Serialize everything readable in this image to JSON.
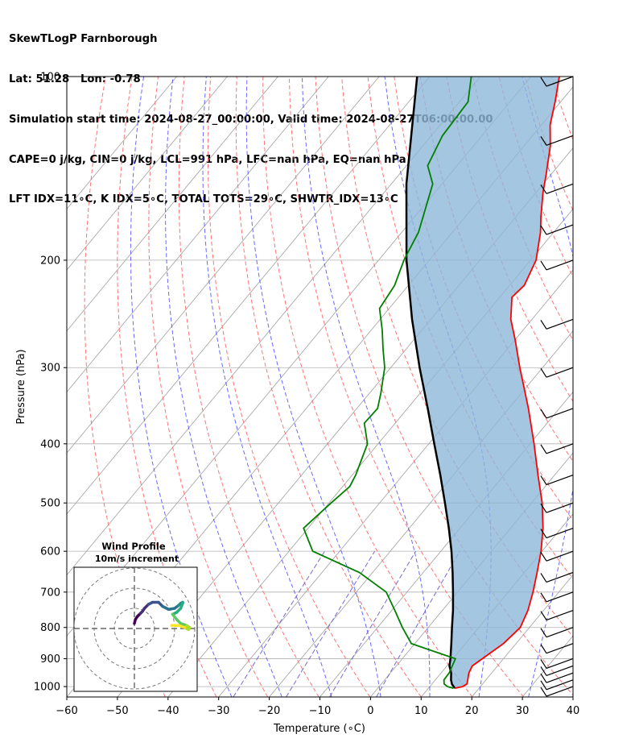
{
  "header": {
    "lines": [
      "SkewTLogP Farnborough",
      "Lat: 51.28   Lon: -0.78",
      "Simulation start time: 2024-08-27_00:00:00, Valid time: 2024-08-27T06:00:00.00",
      "CAPE=0 j/kg, CIN=0 j/kg, LCL=991 hPa, LFC=nan hPa, EQ=nan hPa",
      "LFT IDX=11∘C, K IDX=5∘C, TOTAL TOTS=29∘C, SHWTR_IDX=13∘C"
    ]
  },
  "colors": {
    "temperature": "#ff0000",
    "dewpoint": "#008000",
    "parcel": "#000000",
    "cape_fill": "#8db8d8",
    "dry_adiabat": "#ff6666",
    "moist_adiabat": "#4444ff",
    "mixing_ratio": "#6a5acd",
    "isotherm": "#a0a0a0"
  },
  "chart_data": {
    "type": "line",
    "xlabel": "Temperature (∘C)",
    "ylabel": "Pressure (hPa)",
    "xlim": [
      -60,
      40
    ],
    "ylim": [
      1040,
      100
    ],
    "y_scale": "log",
    "x_ticks": [
      -60,
      -50,
      -40,
      -30,
      -20,
      -10,
      0,
      10,
      20,
      30,
      40
    ],
    "x_tick_labels": [
      "−60",
      "−50",
      "−40",
      "−30",
      "−20",
      "−10",
      "0",
      "10",
      "20",
      "30",
      "40"
    ],
    "y_ticks": [
      100,
      200,
      300,
      400,
      500,
      600,
      700,
      800,
      900,
      1000
    ],
    "y_tick_labels": [
      "100",
      "200",
      "300",
      "400",
      "500",
      "600",
      "700",
      "800",
      "900",
      "1000"
    ],
    "grid": true,
    "skew_deg_per_log_unit": 100,
    "series": [
      {
        "key": "temperature",
        "pressure": [
          1006,
          1000,
          990,
          975,
          950,
          925,
          900,
          850,
          800,
          750,
          700,
          650,
          600,
          550,
          500,
          450,
          400,
          350,
          300,
          270,
          250,
          230,
          220,
          200,
          180,
          170,
          155,
          145,
          130,
          120,
          110,
          100
        ],
        "temp": [
          15.2,
          16.5,
          16.9,
          16.4,
          15.5,
          15.0,
          15.8,
          17.5,
          18.2,
          16.9,
          14.9,
          12.5,
          9.8,
          6.4,
          2.1,
          -3.3,
          -9.2,
          -16.1,
          -24.5,
          -30.0,
          -34.2,
          -37.6,
          -37.1,
          -38.9,
          -42.6,
          -45.0,
          -48.6,
          -50.9,
          -54.8,
          -58.3,
          -61.1,
          -64.4
        ]
      },
      {
        "key": "dewpoint",
        "pressure": [
          1006,
          1000,
          990,
          975,
          950,
          900,
          850,
          800,
          750,
          700,
          650,
          600,
          550,
          500,
          470,
          450,
          400,
          370,
          350,
          330,
          300,
          280,
          260,
          240,
          220,
          200,
          180,
          150,
          140,
          125,
          110,
          100
        ],
        "temp": [
          14.9,
          13.5,
          12.4,
          11.7,
          11.6,
          10.5,
          -0.7,
          -5.1,
          -9.4,
          -14.1,
          -22.6,
          -35.3,
          -40.9,
          -39.6,
          -38.6,
          -39.3,
          -42.1,
          -46.1,
          -45.9,
          -47.8,
          -51.2,
          -54.5,
          -57.9,
          -61.9,
          -62.7,
          -65.0,
          -66.7,
          -71.8,
          -75.8,
          -77.8,
          -78.3,
          -81.8
        ]
      },
      {
        "key": "parcel",
        "pressure": [
          1006,
          991,
          975,
          950,
          925,
          900,
          850,
          800,
          750,
          700,
          650,
          600,
          550,
          500,
          450,
          400,
          350,
          300,
          250,
          200,
          150,
          100
        ],
        "temp": [
          15.2,
          14.0,
          13.1,
          12.0,
          10.5,
          9.5,
          7.2,
          4.7,
          2.1,
          -0.9,
          -4.2,
          -7.9,
          -12.2,
          -17.1,
          -22.6,
          -28.9,
          -36.0,
          -44.3,
          -53.7,
          -64.5,
          -77.0,
          -92.5
        ]
      }
    ],
    "wind_barbs": {
      "pressure": [
        1000,
        975,
        950,
        925,
        900,
        850,
        800,
        750,
        700,
        650,
        600,
        550,
        500,
        450,
        400,
        350,
        300,
        250,
        200,
        175,
        150,
        125,
        100
      ],
      "u": [
        0,
        0,
        0,
        0,
        0,
        0,
        0,
        0,
        0,
        0,
        0,
        0,
        0,
        0,
        0,
        0,
        0,
        0,
        0,
        0,
        0,
        0,
        0
      ],
      "v": [
        0,
        0,
        0,
        0,
        0,
        0,
        0,
        0,
        0,
        0,
        0,
        0,
        0,
        0,
        0,
        0,
        0,
        0,
        0,
        0,
        0,
        0,
        0
      ]
    },
    "hodograph": {
      "title": "Wind Profile",
      "subtitle": "10m/s increment",
      "rings_ms": [
        10,
        20,
        30
      ],
      "u": [
        0.0,
        0.5,
        1.5,
        3.0,
        4.0,
        5.0,
        7.0,
        9.0,
        12.0,
        14.0,
        17.0,
        20.0,
        22.0,
        23.0,
        24.0,
        24.0,
        23.0,
        21.0,
        19.0,
        21.0,
        23.0,
        26.0,
        27.5,
        27.0,
        25.0,
        22.0,
        18.5
      ],
      "v": [
        2.5,
        4.5,
        6.0,
        7.5,
        8.5,
        10.0,
        12.0,
        13.0,
        13.0,
        11.0,
        9.5,
        10.0,
        11.5,
        12.5,
        13.0,
        12.5,
        10.0,
        8.0,
        7.0,
        4.5,
        2.5,
        1.5,
        0.5,
        -0.5,
        0.5,
        1.5,
        1.5
      ]
    }
  }
}
